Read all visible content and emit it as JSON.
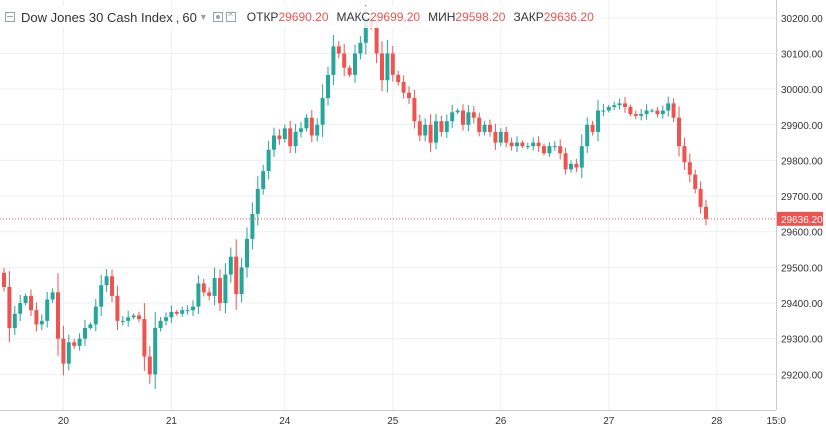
{
  "header": {
    "symbol": "Dow Jones 30 Cash Index",
    "separator": ",",
    "interval": "60",
    "open_label": "ОТКР",
    "open_value": "29690.20",
    "high_label": "МАКС",
    "high_value": "29699.20",
    "low_label": "МИН",
    "low_value": "29598.20",
    "close_label": "ЗАКР",
    "close_value": "29636.20",
    "icons": [
      "collapse-icon",
      "chevron-down-icon",
      "settings-icon",
      "close-icon"
    ]
  },
  "colors": {
    "up": "#26a69a",
    "down": "#ef5350",
    "grid": "#eceff2",
    "axis_text": "#333333",
    "last_price_line": "#ef5350"
  },
  "chart_data": {
    "type": "candlestick",
    "symbol": "Dow Jones 30 Cash Index",
    "interval": "60",
    "ylim": [
      29100,
      30250
    ],
    "y_ticks": [
      29200,
      29300,
      29400,
      29500,
      29600,
      29700,
      29800,
      29900,
      30000,
      30100,
      30200
    ],
    "y_tick_labels": [
      "29200.00",
      "29300.00",
      "29400.00",
      "29500.00",
      "29600.00",
      "29700.00",
      "29800.00",
      "29900.00",
      "30000.00",
      "30100.00",
      "30200.00"
    ],
    "x_tick_labels": [
      "20",
      "21",
      "24",
      "25",
      "26",
      "27",
      "28",
      "15:0"
    ],
    "x_tick_bar_index": [
      11,
      31,
      52,
      72,
      92,
      112,
      132,
      143
    ],
    "last_price": 29636.2,
    "last_price_label": "29636.20",
    "grid": true,
    "close": [
      29445,
      29330,
      29370,
      29400,
      29420,
      29380,
      29340,
      29350,
      29410,
      29430,
      29300,
      29230,
      29290,
      29280,
      29300,
      29330,
      29340,
      29390,
      29450,
      29475,
      29420,
      29350,
      29350,
      29360,
      29365,
      29355,
      29250,
      29200,
      29330,
      29350,
      29360,
      29375,
      29370,
      29380,
      29380,
      29390,
      29455,
      29430,
      29420,
      29470,
      29400,
      29480,
      29530,
      29425,
      29500,
      29580,
      29650,
      29720,
      29770,
      29830,
      29870,
      29860,
      29890,
      29840,
      29880,
      29890,
      29920,
      29870,
      29900,
      29975,
      30040,
      30120,
      30100,
      30060,
      30040,
      30100,
      30130,
      30200,
      30175,
      30100,
      30025,
      30100,
      30040,
      30020,
      29990,
      29975,
      29910,
      29870,
      29900,
      29850,
      29910,
      29880,
      29910,
      29935,
      29940,
      29900,
      29935,
      29920,
      29880,
      29900,
      29880,
      29850,
      29880,
      29850,
      29840,
      29850,
      29840,
      29840,
      29850,
      29840,
      29820,
      29840,
      29840,
      29820,
      29775,
      29790,
      29780,
      29840,
      29900,
      29880,
      29940,
      29940,
      29950,
      29955,
      29960,
      29950,
      29930,
      29925,
      29930,
      29940,
      29940,
      29930,
      29940,
      29960,
      29920,
      29840,
      29795,
      29760,
      29720,
      29670,
      29636
    ]
  }
}
